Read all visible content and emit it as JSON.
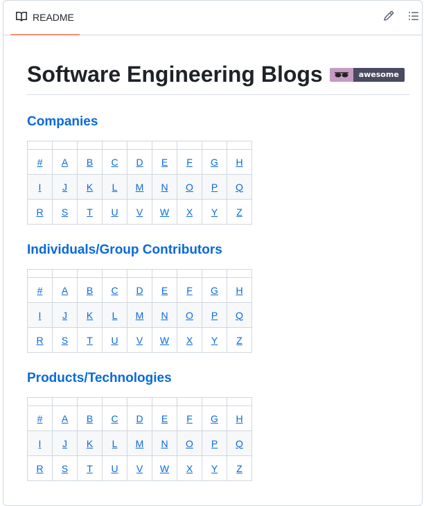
{
  "tab": {
    "label": "README",
    "book_icon": "book-icon"
  },
  "actions": {
    "edit_icon": "pencil-icon",
    "outline_icon": "list-icon"
  },
  "title": "Software Engineering Blogs",
  "badge": {
    "icon": "sunglasses-icon",
    "label": "awesome",
    "left_color": "#c59bc3",
    "right_color": "#4a4a60"
  },
  "sections": [
    {
      "heading": "Companies",
      "rows": [
        [
          "#",
          "A",
          "B",
          "C",
          "D",
          "E",
          "F",
          "G",
          "H"
        ],
        [
          "I",
          "J",
          "K",
          "L",
          "M",
          "N",
          "O",
          "P",
          "Q"
        ],
        [
          "R",
          "S",
          "T",
          "U",
          "V",
          "W",
          "X",
          "Y",
          "Z"
        ]
      ]
    },
    {
      "heading": "Individuals/Group Contributors",
      "rows": [
        [
          "#",
          "A",
          "B",
          "C",
          "D",
          "E",
          "F",
          "G",
          "H"
        ],
        [
          "I",
          "J",
          "K",
          "L",
          "M",
          "N",
          "O",
          "P",
          "Q"
        ],
        [
          "R",
          "S",
          "T",
          "U",
          "V",
          "W",
          "X",
          "Y",
          "Z"
        ]
      ]
    },
    {
      "heading": "Products/Technologies",
      "rows": [
        [
          "#",
          "A",
          "B",
          "C",
          "D",
          "E",
          "F",
          "G",
          "H"
        ],
        [
          "I",
          "J",
          "K",
          "L",
          "M",
          "N",
          "O",
          "P",
          "Q"
        ],
        [
          "R",
          "S",
          "T",
          "U",
          "V",
          "W",
          "X",
          "Y",
          "Z"
        ]
      ]
    }
  ],
  "colors": {
    "link": "#0969da",
    "tab_underline": "#fd8c73",
    "border": "#d0d7de"
  }
}
